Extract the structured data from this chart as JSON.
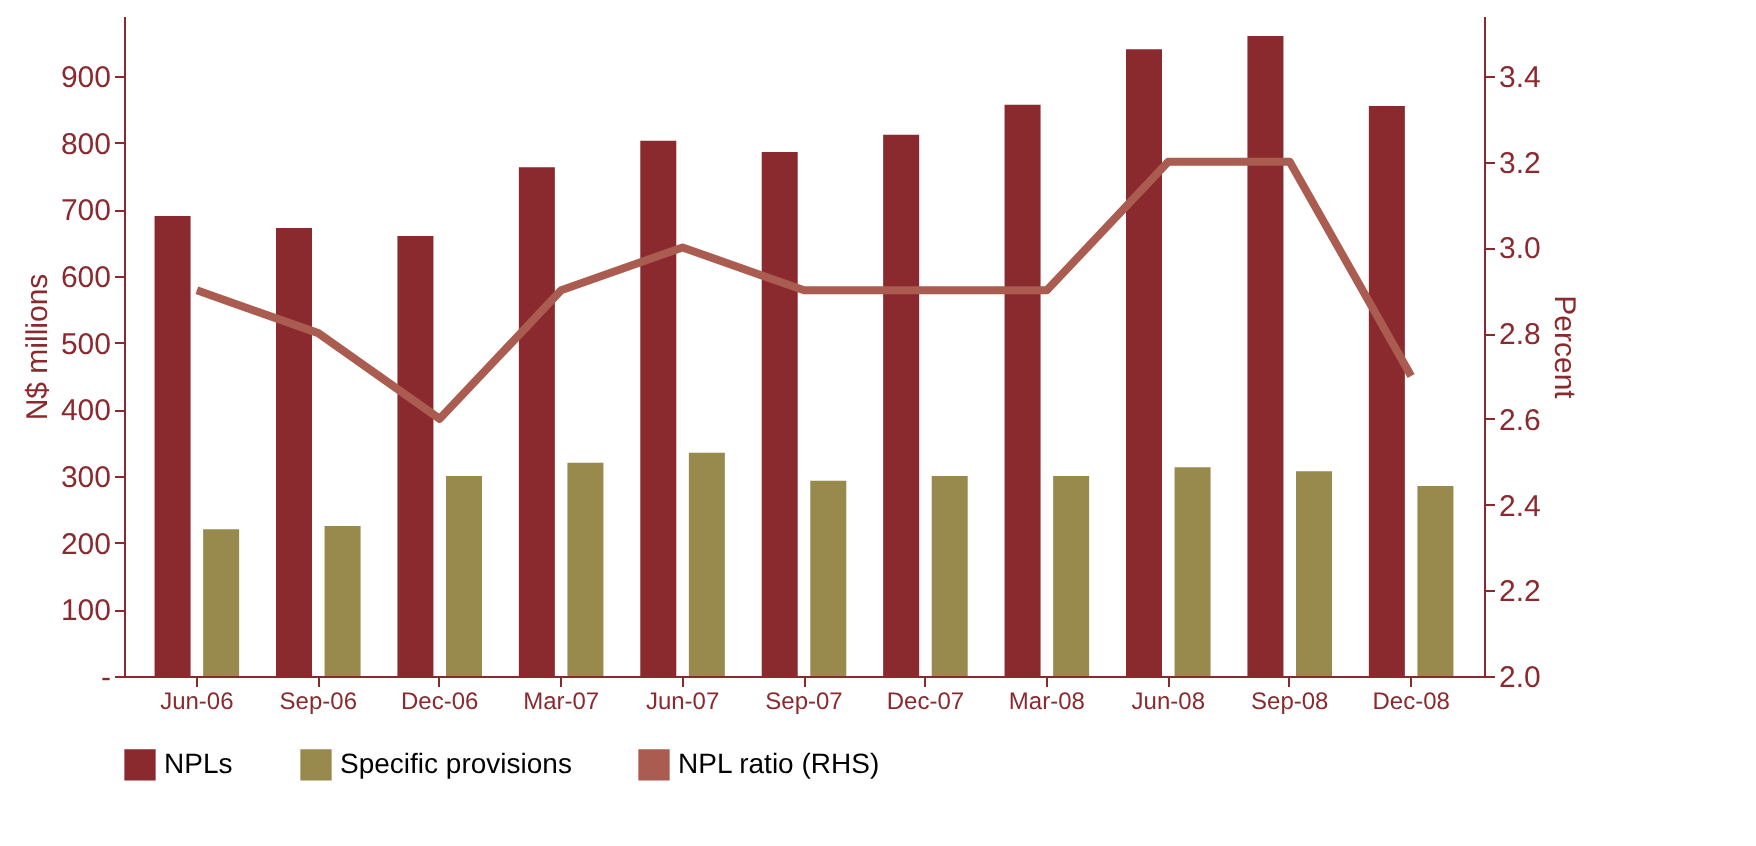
{
  "chart_data": {
    "type": "bar",
    "categories": [
      "Jun-06",
      "Sep-06",
      "Dec-06",
      "Mar-07",
      "Jun-07",
      "Sep-07",
      "Dec-07",
      "Mar-08",
      "Jun-08",
      "Sep-08",
      "Dec-08"
    ],
    "series": [
      {
        "name": "NPLs",
        "color": "#8b2a2e",
        "values": [
          690,
          672,
          660,
          763,
          803,
          786,
          812,
          857,
          940,
          960,
          855
        ]
      },
      {
        "name": "Specific provisions",
        "color": "#978a4c",
        "values": [
          220,
          225,
          300,
          320,
          335,
          293,
          300,
          300,
          313,
          307,
          285
        ]
      },
      {
        "name": "NPL ratio (RHS)",
        "type": "line",
        "axis": "y2",
        "color": "#a95c4f",
        "values": [
          2.9,
          2.8,
          2.6,
          2.9,
          3.0,
          2.9,
          2.9,
          2.9,
          3.2,
          3.2,
          2.7
        ]
      }
    ],
    "ylabel": "N$ millions",
    "y2label": "Percent",
    "ylim": [
      0,
      990
    ],
    "yticks": [
      {
        "value": 0,
        "label": "-"
      },
      100,
      200,
      300,
      400,
      500,
      600,
      700,
      800,
      900
    ],
    "y2lim": [
      2.0,
      3.54
    ],
    "y2ticks": [
      {
        "value": 2,
        "label": "2.0"
      },
      2.2,
      2.4,
      2.6,
      2.8,
      {
        "value": 3,
        "label": "3.0"
      },
      3.2,
      3.4
    ],
    "legend": "bottom",
    "grid": false
  }
}
